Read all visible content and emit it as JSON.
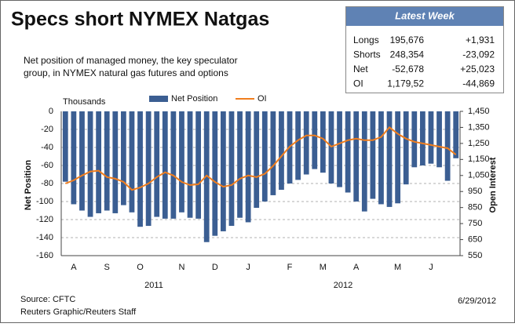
{
  "chart_data": {
    "type": "bar",
    "title": "Specs short NYMEX Natgas",
    "subtitle": [
      "Net position of managed money, the key speculator",
      "group, in NYMEX natural gas futures and options"
    ],
    "units": "Thousands",
    "ylabel": "Net Position",
    "y2label": "Open Interest",
    "categories": [
      null,
      "A",
      null,
      null,
      null,
      "S",
      null,
      null,
      null,
      "O",
      null,
      null,
      null,
      null,
      "N",
      null,
      null,
      null,
      "D",
      null,
      null,
      null,
      "J",
      null,
      null,
      null,
      null,
      "F",
      null,
      null,
      null,
      "M",
      null,
      null,
      null,
      "A",
      null,
      null,
      null,
      null,
      "M",
      null,
      null,
      null,
      "J",
      null,
      null,
      null
    ],
    "years": [
      "2011",
      "2012"
    ],
    "series": [
      {
        "name": "Net Position",
        "type": "bar",
        "color": "#3b5e92",
        "values": [
          -78,
          -103,
          -110,
          -117,
          -113,
          -110,
          -113,
          -104,
          -112,
          -128,
          -127,
          -117,
          -119,
          -119,
          -112,
          -118,
          -119,
          -145,
          -138,
          -133,
          -127,
          -118,
          -123,
          -107,
          -100,
          -93,
          -87,
          -80,
          -76,
          -70,
          -64,
          -68,
          -80,
          -84,
          -90,
          -100,
          -111,
          -97,
          -103,
          -106,
          -102,
          -81,
          -62,
          -60,
          -58,
          -62,
          -77,
          -52
        ]
      },
      {
        "name": "OI",
        "type": "line",
        "axis": "y2",
        "color": "#f07e1e",
        "values": [
          1000,
          1020,
          1050,
          1075,
          1080,
          1040,
          1030,
          1010,
          960,
          975,
          1000,
          1040,
          1070,
          1050,
          1010,
          990,
          995,
          1050,
          1010,
          980,
          990,
          1030,
          1050,
          1040,
          1060,
          1110,
          1170,
          1230,
          1270,
          1300,
          1300,
          1280,
          1230,
          1250,
          1270,
          1280,
          1270,
          1270,
          1290,
          1350,
          1310,
          1280,
          1260,
          1250,
          1240,
          1230,
          1220,
          1180
        ]
      }
    ],
    "ylim": [
      -160,
      0
    ],
    "yticks": [
      0,
      -20,
      -40,
      -60,
      -80,
      -100,
      -120,
      -140,
      -160
    ],
    "y2lim": [
      550,
      1450
    ],
    "y2ticks": [
      {
        "value": 1450,
        "label": "1,450"
      },
      {
        "value": 1350,
        "label": "1,350"
      },
      {
        "value": 1250,
        "label": "1,250"
      },
      {
        "value": 1150,
        "label": "1,150"
      },
      {
        "value": 1050,
        "label": "1,050"
      },
      {
        "value": 950,
        "label": "950"
      },
      {
        "value": 850,
        "label": "850"
      },
      {
        "value": 750,
        "label": "750"
      },
      {
        "value": 650,
        "label": "650"
      },
      {
        "value": 550,
        "label": "550"
      }
    ],
    "grid": true,
    "source": "Source: CFTC",
    "credit": "Reuters Graphic/Reuters Staff",
    "date": "6/29/2012"
  },
  "table": {
    "title": "Latest Week",
    "rows": [
      [
        "Longs",
        "195,676",
        "+1,931"
      ],
      [
        "Shorts",
        "248,354",
        "-23,092"
      ],
      [
        "Net",
        "-52,678",
        "+25,023"
      ],
      [
        "OI",
        "1,179,52",
        "-44,869"
      ]
    ]
  }
}
